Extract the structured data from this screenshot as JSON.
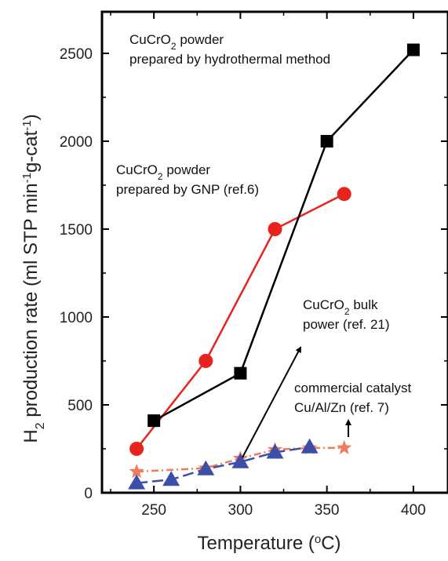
{
  "chart_data": {
    "type": "line",
    "title": "",
    "xlabel": "Temperature (°C)",
    "xlabel_main": "Temperature (",
    "xlabel_sup": "o",
    "xlabel_end": "C)",
    "ylabel_parts": [
      "H",
      "2",
      " production rate (ml STP min",
      "-1",
      "g-cat",
      "-1",
      ")"
    ],
    "xlim": [
      220,
      420
    ],
    "ylim": [
      0,
      2500
    ],
    "xticks": [
      250,
      300,
      350,
      400
    ],
    "yticks": [
      0,
      500,
      1000,
      1500,
      2000,
      2500
    ],
    "grid": false,
    "series": [
      {
        "label": "CuCrO2 powder prepared by hydrothermal method",
        "marker": "square",
        "color": "#000000",
        "line": "solid",
        "x": [
          250,
          300,
          350,
          400
        ],
        "y": [
          410,
          680,
          2000,
          2520
        ]
      },
      {
        "label": "CuCrO2 powder prepared by GNP (ref.6)",
        "marker": "circle",
        "color": "#e8231e",
        "line": "solid",
        "x": [
          240,
          280,
          320,
          360
        ],
        "y": [
          250,
          750,
          1500,
          1700
        ]
      },
      {
        "label": "CuCrO2 bulk power (ref. 21)",
        "marker": "triangle",
        "color": "#3b4fa8",
        "line": "dashed",
        "x": [
          240,
          260,
          280,
          300,
          320,
          340
        ],
        "y": [
          55,
          75,
          135,
          175,
          230,
          260
        ]
      },
      {
        "label": "commercial catalyst Cu/Al/Zn (ref. 7)",
        "marker": "star",
        "color": "#f07a5e",
        "line": "dashdot",
        "x": [
          240,
          280,
          300,
          320,
          340,
          360
        ],
        "y": [
          120,
          140,
          195,
          245,
          255,
          255
        ]
      }
    ],
    "annotations": [
      {
        "lines": [
          [
            "CuCrO",
            "2",
            " powder"
          ],
          [
            "prepared by hydrothermal method"
          ]
        ]
      },
      {
        "lines": [
          [
            "CuCrO",
            "2",
            " powder"
          ],
          [
            "prepared by GNP (ref.6)"
          ]
        ]
      },
      {
        "lines": [
          [
            "CuCrO",
            "2",
            " bulk"
          ],
          [
            "power (ref. 21)"
          ]
        ]
      },
      {
        "lines": [
          [
            "commercial catalyst"
          ],
          [
            "Cu/Al/Zn (ref. 7)"
          ]
        ]
      }
    ]
  }
}
